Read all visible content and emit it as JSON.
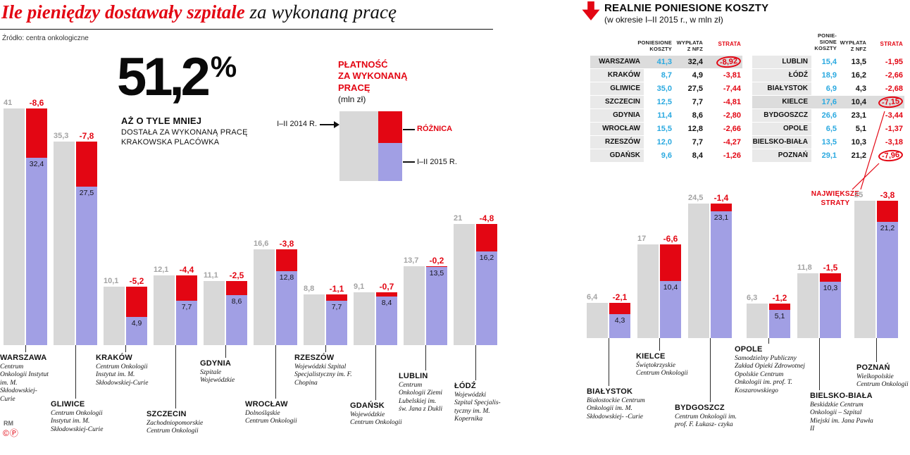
{
  "header": {
    "title_red": "Ile pieniędzy dostawały szpitale",
    "title_black": " za wykonaną pracę",
    "source": "Źródło: centra onkologiczne"
  },
  "highlight": {
    "percent_value": "51,2",
    "percent_sign": "%",
    "line1": "AŻ O TYLE MNIEJ",
    "line2": "DOSTAŁA ZA WYKONANĄ PRACĘ",
    "line3": "KRAKOWSKA PLACÓWKA"
  },
  "legend": {
    "title": "PŁATNOŚĆ\nZA WYKONANĄ\nPRACĘ",
    "unit": "(mln zł)",
    "label_2014": "I–II 2014 R.",
    "label_diff": "RÓŻNICA",
    "label_2015": "I–II 2015 R.",
    "color_2014": "#d8d8d8",
    "color_2015": "#a19fe4",
    "color_diff": "#e30613"
  },
  "costs": {
    "title": "REALNIE PONIESIONE KOSZTY",
    "subtitle": "(w okresie I–II 2015 r., w mln zł)",
    "headers_left": {
      "koszty": "PONIESIONE\nKOSZTY",
      "wyplata": "WYPŁATA\nZ NFZ",
      "strata": "STRATA"
    },
    "headers_right": {
      "koszty": "PONIE-\nSIONE\nKOSZTY",
      "wyplata": "WYPŁATA\nZ NFZ",
      "strata": "STRATA"
    },
    "annotation": "NAJWIĘKSZE\nSTRATY",
    "left_rows": [
      {
        "city": "WARSZAWA",
        "koszty": "41,3",
        "wyplata": "32,4",
        "strata": "-8,92",
        "highlight": true,
        "circled": true
      },
      {
        "city": "KRAKÓW",
        "koszty": "8,7",
        "wyplata": "4,9",
        "strata": "-3,81"
      },
      {
        "city": "GLIWICE",
        "koszty": "35,0",
        "wyplata": "27,5",
        "strata": "-7,44"
      },
      {
        "city": "SZCZECIN",
        "koszty": "12,5",
        "wyplata": "7,7",
        "strata": "-4,81"
      },
      {
        "city": "GDYNIA",
        "koszty": "11,4",
        "wyplata": "8,6",
        "strata": "-2,80"
      },
      {
        "city": "WROCŁAW",
        "koszty": "15,5",
        "wyplata": "12,8",
        "strata": "-2,66"
      },
      {
        "city": "RZESZÓW",
        "koszty": "12,0",
        "wyplata": "7,7",
        "strata": "-4,27"
      },
      {
        "city": "GDAŃSK",
        "koszty": "9,6",
        "wyplata": "8,4",
        "strata": "-1,26"
      }
    ],
    "right_rows": [
      {
        "city": "LUBLIN",
        "koszty": "15,4",
        "wyplata": "13,5",
        "strata": "-1,95"
      },
      {
        "city": "ŁÓDŹ",
        "koszty": "18,9",
        "wyplata": "16,2",
        "strata": "-2,66"
      },
      {
        "city": "BIAŁYSTOK",
        "koszty": "6,9",
        "wyplata": "4,3",
        "strata": "-2,68"
      },
      {
        "city": "KIELCE",
        "koszty": "17,6",
        "wyplata": "10,4",
        "strata": "-7,15",
        "highlight": true,
        "circled": true
      },
      {
        "city": "BYDGOSZCZ",
        "koszty": "26,6",
        "wyplata": "23,1",
        "strata": "-3,44"
      },
      {
        "city": "OPOLE",
        "koszty": "6,5",
        "wyplata": "5,1",
        "strata": "-1,37"
      },
      {
        "city": "BIELSKO-BIAŁA",
        "koszty": "13,5",
        "wyplata": "10,3",
        "strata": "-3,18"
      },
      {
        "city": "POZNAŃ",
        "koszty": "29,1",
        "wyplata": "21,2",
        "strata": "-7,96",
        "circled": true
      }
    ]
  },
  "footer": {
    "credit": "RM",
    "marks": "©Ⓟ"
  },
  "chart_data": [
    {
      "type": "bar",
      "title": "Płatność za wykonaną pracę",
      "unit": "mln zł",
      "series_names": [
        "I–II 2014 R.",
        "I–II 2015 R.",
        "RÓŻNICA"
      ],
      "categories": [
        "WARSZAWA",
        "GLIWICE",
        "KRAKÓW",
        "SZCZECIN",
        "GDYNIA",
        "WROCŁAW",
        "RZESZÓW",
        "GDAŃSK",
        "LUBLIN",
        "ŁÓDŹ"
      ],
      "series": [
        {
          "name": "I–II 2014 R.",
          "values": [
            41,
            35.3,
            10.1,
            12.1,
            11.1,
            16.6,
            8.8,
            9.1,
            13.7,
            21
          ]
        },
        {
          "name": "I–II 2015 R.",
          "values": [
            32.4,
            27.5,
            4.9,
            7.7,
            8.6,
            12.8,
            7.7,
            8.4,
            13.5,
            16.2
          ]
        },
        {
          "name": "RÓŻNICA",
          "values": [
            -8.6,
            -7.8,
            -5.2,
            -4.4,
            -2.5,
            -3.8,
            -1.1,
            -0.7,
            -0.2,
            -4.8
          ]
        }
      ],
      "cities": [
        {
          "name": "WARSZAWA",
          "org": "Centrum Onkologii Instytut im. M. Skłodowskiej-Curie",
          "v2014": 41,
          "v2014_label": "41",
          "v2015": 32.4,
          "v2015_label": "32,4",
          "diff": -8.6,
          "diff_label": "-8,6"
        },
        {
          "name": "GLIWICE",
          "org": "Centrum Onkologii Instytut im. M. Skłodowskiej-Curie",
          "v2014": 35.3,
          "v2014_label": "35,3",
          "v2015": 27.5,
          "v2015_label": "27,5",
          "diff": -7.8,
          "diff_label": "-7,8"
        },
        {
          "name": "KRAKÓW",
          "org": "Centrum Onkologii Instytut im. M. Skłodowskiej-Curie",
          "v2014": 10.1,
          "v2014_label": "10,1",
          "v2015": 4.9,
          "v2015_label": "4,9",
          "diff": -5.2,
          "diff_label": "-5,2"
        },
        {
          "name": "SZCZECIN",
          "org": "Zachodniopomorskie Centrum Onkologii",
          "v2014": 12.1,
          "v2014_label": "12,1",
          "v2015": 7.7,
          "v2015_label": "7,7",
          "diff": -4.4,
          "diff_label": "-4,4"
        },
        {
          "name": "GDYNIA",
          "org": "Szpitale Wojewódzkie",
          "v2014": 11.1,
          "v2014_label": "11,1",
          "v2015": 8.6,
          "v2015_label": "8,6",
          "diff": -2.5,
          "diff_label": "-2,5"
        },
        {
          "name": "WROCŁAW",
          "org": "Dolnośląskie Centrum Onkologii",
          "v2014": 16.6,
          "v2014_label": "16,6",
          "v2015": 12.8,
          "v2015_label": "12,8",
          "diff": -3.8,
          "diff_label": "-3,8"
        },
        {
          "name": "RZESZÓW",
          "org": "Wojewódzki Szpital Specjalistyczny im. F. Chopina",
          "v2014": 8.8,
          "v2014_label": "8,8",
          "v2015": 7.7,
          "v2015_label": "7,7",
          "diff": -1.1,
          "diff_label": "-1,1"
        },
        {
          "name": "GDAŃSK",
          "org": "Wojewódzkie Centrum Onkologii",
          "v2014": 9.1,
          "v2014_label": "9,1",
          "v2015": 8.4,
          "v2015_label": "8,4",
          "diff": -0.7,
          "diff_label": "-0,7"
        },
        {
          "name": "LUBLIN",
          "org": "Centrum Onkologii Ziemi Lubelskiej im. św. Jana z Dukli",
          "v2014": 13.7,
          "v2014_label": "13,7",
          "v2015": 13.5,
          "v2015_label": "13,5",
          "diff": -0.2,
          "diff_label": "-0,2"
        },
        {
          "name": "ŁÓDŹ",
          "org": "Wojewódzki Szpital Specjalis- tyczny im. M. Kopernika",
          "v2014": 21,
          "v2014_label": "21",
          "v2015": 16.2,
          "v2015_label": "16,2",
          "diff": -4.8,
          "diff_label": "-4,8"
        }
      ]
    },
    {
      "type": "bar",
      "title": "Realnie poniesione koszty — płatność za wykonaną pracę",
      "unit": "mln zł",
      "series_names": [
        "I–II 2014 R.",
        "I–II 2015 R.",
        "RÓŻNICA"
      ],
      "categories": [
        "BIAŁYSTOK",
        "KIELCE",
        "BYDGOSZCZ",
        "OPOLE",
        "BIELSKO-BIAŁA",
        "POZNAŃ"
      ],
      "series": [
        {
          "name": "I–II 2014 R.",
          "values": [
            6.4,
            17,
            24.5,
            6.3,
            11.8,
            25
          ]
        },
        {
          "name": "I–II 2015 R.",
          "values": [
            4.3,
            10.4,
            23.1,
            5.1,
            10.3,
            21.2
          ]
        },
        {
          "name": "RÓŻNICA",
          "values": [
            -2.1,
            -6.6,
            -1.4,
            -1.2,
            -1.5,
            -3.8
          ]
        }
      ],
      "cities": [
        {
          "name": "BIAŁYSTOK",
          "org": "Białostockie Centrum Onkologii im. M. Skłodowskiej- -Curie",
          "v2014": 6.4,
          "v2014_label": "6,4",
          "v2015": 4.3,
          "v2015_label": "4,3",
          "diff": -2.1,
          "diff_label": "-2,1"
        },
        {
          "name": "KIELCE",
          "org": "Świętokrzyskie Centrum Onkologii",
          "v2014": 17,
          "v2014_label": "17",
          "v2015": 10.4,
          "v2015_label": "10,4",
          "diff": -6.6,
          "diff_label": "-6,6"
        },
        {
          "name": "BYDGOSZCZ",
          "org": "Centrum Onkologii im. prof. F. Łukasz- czyka",
          "v2014": 24.5,
          "v2014_label": "24,5",
          "v2015": 23.1,
          "v2015_label": "23,1",
          "diff": -1.4,
          "diff_label": "-1,4"
        },
        {
          "name": "OPOLE",
          "org": "Samodzielny Publiczny Zakład Opieki Zdrowotnej Opolskie Centrum Onkologii im. prof. T. Koszarowskiego",
          "v2014": 6.3,
          "v2014_label": "6,3",
          "v2015": 5.1,
          "v2015_label": "5,1",
          "diff": -1.2,
          "diff_label": "-1,2"
        },
        {
          "name": "BIELSKO-BIAŁA",
          "org": "Beskidzkie Centrum Onkologii – Szpital Miejski im. Jana Pawła II",
          "v2014": 11.8,
          "v2014_label": "11,8",
          "v2015": 10.3,
          "v2015_label": "10,3",
          "diff": -1.5,
          "diff_label": "-1,5"
        },
        {
          "name": "POZNAŃ",
          "org": "Wielkopolskie Centrum Onkologii",
          "v2014": 25,
          "v2014_label": "25",
          "v2015": 21.2,
          "v2015_label": "21,2",
          "diff": -3.8,
          "diff_label": "-3,8"
        }
      ]
    }
  ]
}
